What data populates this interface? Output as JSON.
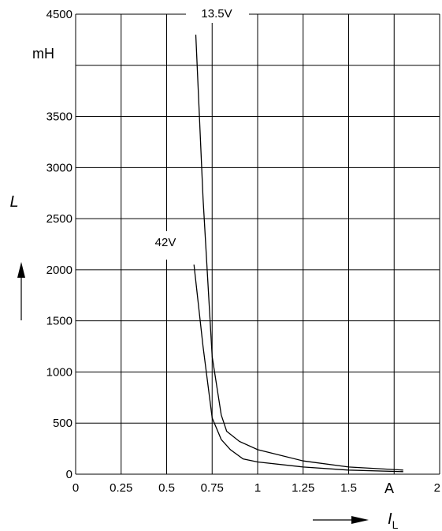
{
  "chart_data": {
    "type": "line",
    "xlim": [
      0,
      2
    ],
    "ylim": [
      0,
      4500
    ],
    "x_ticks": [
      "0",
      "0.25",
      "0.5",
      "0.75",
      "1",
      "1.25",
      "1.5",
      "2"
    ],
    "x_tick_values": [
      0,
      0.25,
      0.5,
      0.75,
      1,
      1.25,
      1.5,
      2
    ],
    "y_ticks": [
      "0",
      "500",
      "1000",
      "1500",
      "2000",
      "2500",
      "3000",
      "3500",
      "4500"
    ],
    "y_tick_values": [
      0,
      500,
      1000,
      1500,
      2000,
      2500,
      3000,
      3500,
      4500
    ],
    "x_gridlines": [
      0,
      0.25,
      0.5,
      0.75,
      1,
      1.25,
      1.5,
      1.75,
      2
    ],
    "y_gridlines": [
      0,
      500,
      1000,
      1500,
      2000,
      2500,
      3000,
      3500,
      4000,
      4500
    ],
    "grid": true,
    "x_unit": "A",
    "y_unit": "mH",
    "x_symbol": "I",
    "x_symbol_sub": "L",
    "y_symbol": "L",
    "series": [
      {
        "name": "13.5V",
        "x": [
          0.66,
          0.7,
          0.75,
          0.8,
          0.83,
          0.9,
          1.0,
          1.25,
          1.5,
          1.8
        ],
        "y": [
          4300,
          2700,
          1150,
          580,
          420,
          320,
          240,
          130,
          70,
          40
        ]
      },
      {
        "name": "42V",
        "x": [
          0.65,
          0.7,
          0.75,
          0.8,
          0.85,
          0.92,
          1.0,
          1.25,
          1.5,
          1.8
        ],
        "y": [
          2050,
          1250,
          550,
          340,
          240,
          150,
          120,
          70,
          40,
          25
        ]
      }
    ]
  }
}
